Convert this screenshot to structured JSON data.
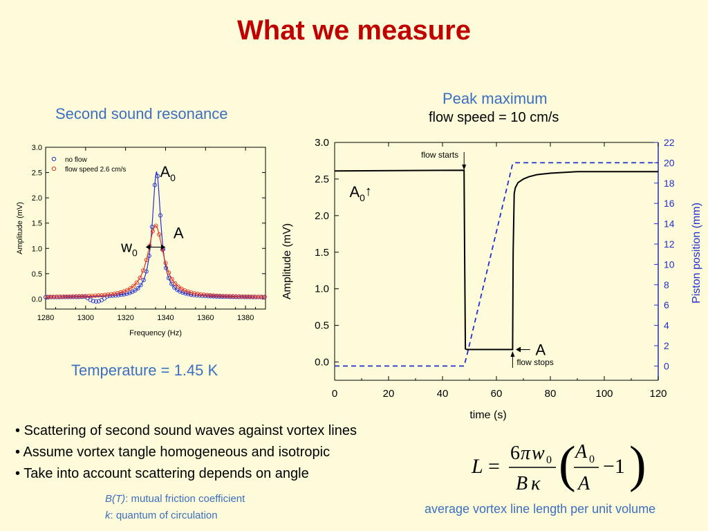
{
  "slide": {
    "title": "What we measure",
    "left_heading": "Second sound resonance",
    "right_heading_1": "Peak maximum",
    "right_heading_2": "flow speed =  10 cm/s",
    "temperature": "Temperature = 1.45 K",
    "bullets": [
      "Scattering of second sound waves against vortex lines",
      "Assume vortex tangle homogeneous and isotropic",
      "Take into account scattering depends on angle"
    ],
    "def1_symbol": "B(T)",
    "def1_text": ": mutual friction coefficient",
    "def2_symbol": "k",
    "def2_text": ": quantum of circulation",
    "formula_caption": "average vortex line length per unit volume",
    "formula": {
      "lhs": "L",
      "equals": "=",
      "num_coeff": "6",
      "num_pi": "π",
      "num_w": "w",
      "num_w_sub": "0",
      "den_B": "B",
      "den_kappa": "κ",
      "inner_num": "A",
      "inner_num_sub": "0",
      "inner_den": "A",
      "minus_one": "−1",
      "paren_left": "(",
      "paren_right": ")"
    }
  },
  "chart_data": [
    {
      "type": "scatter",
      "xlabel": "Frequency (Hz)",
      "ylabel": "Amplitude (mV)",
      "xlim": [
        1280,
        1390
      ],
      "ylim": [
        -0.2,
        3.0
      ],
      "xticks": [
        "1280",
        "1300",
        "1320",
        "1340",
        "1360",
        "1380"
      ],
      "yticks": [
        "0.0",
        "0.5",
        "1.0",
        "1.5",
        "2.0",
        "2.5",
        "3.0"
      ],
      "legend_position": "top-left",
      "series": [
        {
          "name": "no flow",
          "color": "#1f2fd0",
          "peak_x": 1335.5,
          "peak_y": 2.52,
          "width": 2.6,
          "baseline": 0.03
        },
        {
          "name": "flow speed 2.6 cm/s",
          "color": "#e03020",
          "peak_x": 1335.0,
          "peak_y": 1.45,
          "width": 4.8,
          "baseline": 0.03
        }
      ],
      "annotations": {
        "peak_label": "A",
        "peak_label_sub": "0",
        "width_label": "w",
        "width_label_sub": "0",
        "amp_label": "A"
      }
    },
    {
      "type": "line",
      "xlabel": "time (s)",
      "ylabel": "Amplitude (mV)",
      "y2label": "Piston position (mm)",
      "xlim": [
        0,
        120
      ],
      "ylim": [
        -0.25,
        3.0
      ],
      "y2lim": [
        -1.4,
        22.0
      ],
      "xticks": [
        "0",
        "20",
        "40",
        "60",
        "80",
        "100",
        "120"
      ],
      "yticks": [
        "0.0",
        "0.5",
        "1.0",
        "1.5",
        "2.0",
        "2.5",
        "3.0"
      ],
      "y2ticks": [
        "0",
        "2",
        "4",
        "6",
        "8",
        "10",
        "12",
        "14",
        "16",
        "18",
        "20",
        "22"
      ],
      "series": [
        {
          "name": "amplitude",
          "color": "#000000",
          "x": [
            0,
            48,
            48.2,
            48.5,
            49,
            66,
            66.2,
            66.6,
            67,
            68,
            70,
            72,
            75,
            80,
            90,
            100,
            120
          ],
          "y": [
            2.61,
            2.62,
            1.5,
            0.18,
            0.17,
            0.17,
            1.5,
            2.3,
            2.38,
            2.45,
            2.5,
            2.53,
            2.56,
            2.58,
            2.6,
            2.6,
            2.6
          ]
        },
        {
          "name": "piston position",
          "color": "#1f2fd0",
          "axis": "y2",
          "dash": true,
          "x": [
            0,
            48,
            49,
            66,
            67,
            120
          ],
          "y": [
            0,
            0,
            1,
            19.9,
            20,
            20
          ]
        }
      ],
      "annotations": {
        "flow_starts": "flow starts",
        "flow_stops": "flow stops",
        "a0_label": "A",
        "a0_sub": "0",
        "a0_arrow": "↑",
        "a_label": "A"
      }
    }
  ]
}
